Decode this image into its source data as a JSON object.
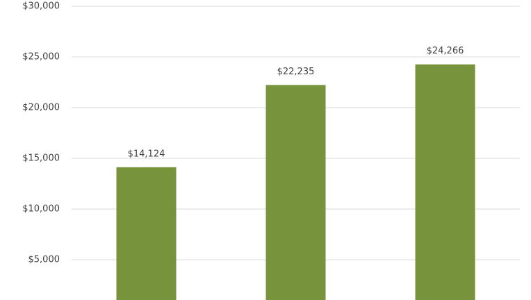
{
  "chart_data": {
    "type": "bar",
    "categories": [
      null,
      null,
      null
    ],
    "values": [
      14124,
      22235,
      24266
    ],
    "value_labels": [
      "$14,124",
      "$22,235",
      "$24,266"
    ],
    "color": "#77933c",
    "ylim": [
      0,
      30000
    ],
    "yticks": [
      {
        "value": 5000,
        "label": "$5,000"
      },
      {
        "value": 10000,
        "label": "$10,000"
      },
      {
        "value": 15000,
        "label": "$15,000"
      },
      {
        "value": 20000,
        "label": "$20,000"
      },
      {
        "value": 25000,
        "label": "$25,000"
      },
      {
        "value": 30000,
        "label": "$30,000"
      }
    ],
    "grid": true
  }
}
